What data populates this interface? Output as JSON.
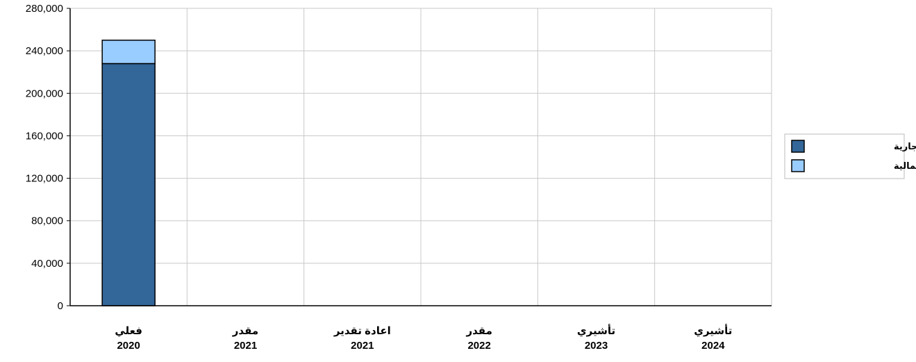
{
  "chart_data": {
    "type": "bar",
    "stacked": true,
    "categories": [
      [
        "فعلي",
        "2020"
      ],
      [
        "مقدر",
        "2021"
      ],
      [
        "اعادة تقدير",
        "2021"
      ],
      [
        "مقدر",
        "2022"
      ],
      [
        "تأشيري",
        "2023"
      ],
      [
        "تأشيري",
        "2024"
      ]
    ],
    "series": [
      {
        "name": "النفقات الجارية",
        "color": "#336699",
        "values": [
          228000,
          0,
          0,
          0,
          0,
          0
        ]
      },
      {
        "name": "النفقات الرأسمالية",
        "color": "#99ccff",
        "values": [
          22000,
          0,
          0,
          0,
          0,
          0
        ]
      }
    ],
    "ylim": [
      0,
      280000
    ],
    "yticks": [
      0,
      40000,
      80000,
      120000,
      160000,
      200000,
      240000,
      280000
    ],
    "ytick_labels": [
      "0",
      "40,000",
      "80,000",
      "120,000",
      "160,000",
      "200,000",
      "240,000",
      "280,000"
    ],
    "grid": true,
    "legend_position": "right"
  }
}
